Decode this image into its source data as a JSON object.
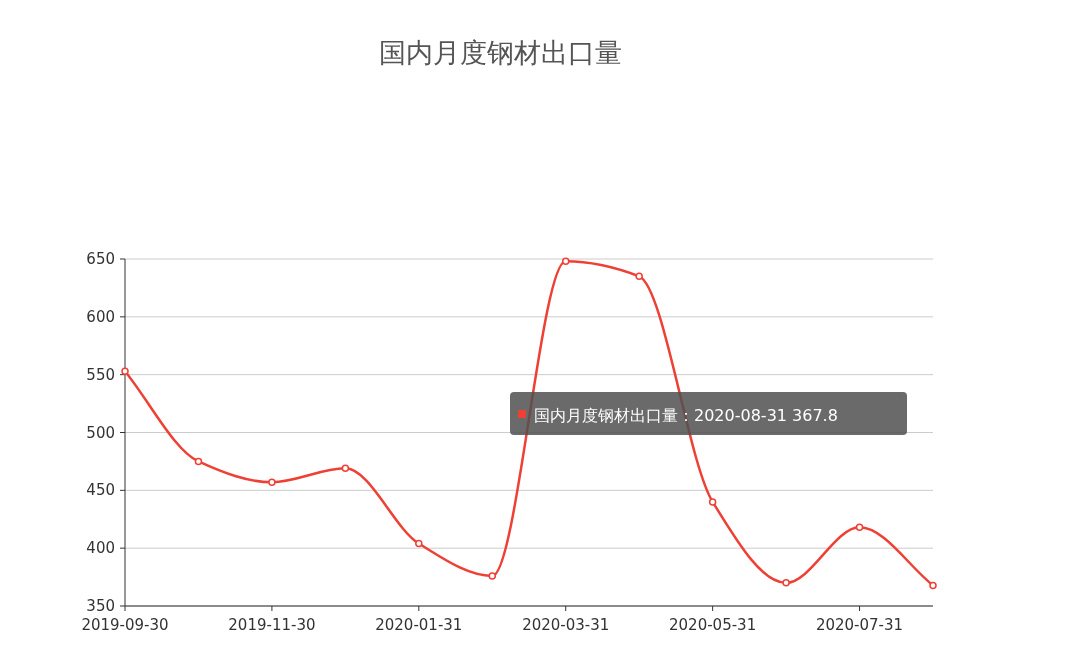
{
  "chart_data": {
    "type": "line",
    "title": "国内月度钢材出口量",
    "categories": [
      "2019-09-30",
      null,
      "2019-11-30",
      null,
      "2020-01-31",
      null,
      "2020-03-31",
      null,
      "2020-05-31",
      null,
      "2020-07-31",
      null
    ],
    "series": [
      {
        "color": "#ee4035",
        "values": [
          553,
          475,
          457,
          469,
          404,
          376,
          648,
          635,
          440,
          370,
          418,
          367.8
        ]
      }
    ],
    "ylim": [
      350,
      650
    ],
    "yticks": [
      350,
      400,
      450,
      500,
      550,
      600,
      650
    ],
    "grid": "y",
    "marker": "circle",
    "line_style": "solid",
    "annotations": [
      "国内月度钢材出口量：2020-08-31 367.8"
    ]
  }
}
